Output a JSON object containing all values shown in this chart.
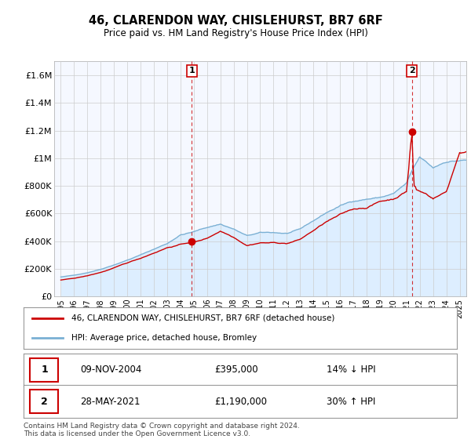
{
  "title": "46, CLARENDON WAY, CHISLEHURST, BR7 6RF",
  "subtitle": "Price paid vs. HM Land Registry's House Price Index (HPI)",
  "ylim": [
    0,
    1700000
  ],
  "yticks": [
    0,
    200000,
    400000,
    600000,
    800000,
    1000000,
    1200000,
    1400000,
    1600000
  ],
  "ytick_labels": [
    "£0",
    "£200K",
    "£400K",
    "£600K",
    "£800K",
    "£1M",
    "£1.2M",
    "£1.4M",
    "£1.6M"
  ],
  "sale1_year": 2004.86,
  "sale1_price": 395000,
  "sale2_year": 2021.41,
  "sale2_price": 1190000,
  "sale1_date": "09-NOV-2004",
  "sale1_price_str": "£395,000",
  "sale1_hpi_str": "14% ↓ HPI",
  "sale2_date": "28-MAY-2021",
  "sale2_price_str": "£1,190,000",
  "sale2_hpi_str": "30% ↑ HPI",
  "red_color": "#cc0000",
  "blue_color": "#7ab0d4",
  "blue_fill": "#ddeeff",
  "background_plot": "#f5f8ff",
  "grid_color": "#cccccc",
  "legend_label_red": "46, CLARENDON WAY, CHISLEHURST, BR7 6RF (detached house)",
  "legend_label_blue": "HPI: Average price, detached house, Bromley",
  "footer": "Contains HM Land Registry data © Crown copyright and database right 2024.\nThis data is licensed under the Open Government Licence v3.0."
}
